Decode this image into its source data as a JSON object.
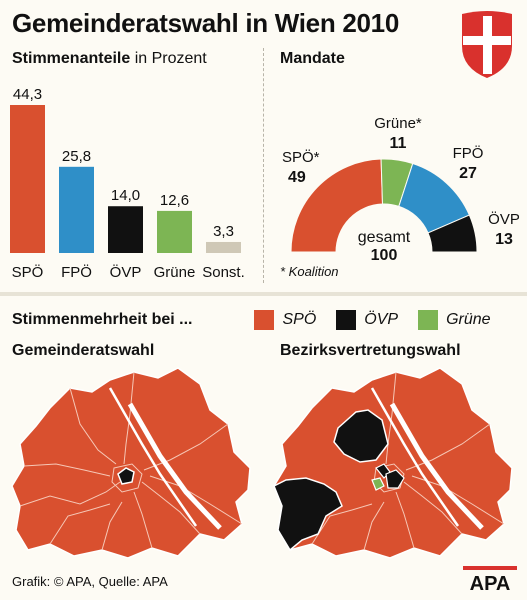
{
  "title": "Gemeinderatswahl in Wien 2010",
  "colors": {
    "spo": "#d9502f",
    "fpo": "#2f8fc8",
    "ovp": "#111111",
    "grune": "#7db554",
    "sonst": "#cfc8b6"
  },
  "left_panel": {
    "heading_bold": "Stimmenanteile",
    "heading_rest": " in Prozent"
  },
  "right_panel": {
    "heading": "Mandate",
    "total_label": "gesamt",
    "total_value": "100",
    "footnote": "* Koalition"
  },
  "chart_data": [
    {
      "type": "bar",
      "title": "Stimmenanteile in Prozent",
      "categories": [
        "SPÖ",
        "FPÖ",
        "ÖVP",
        "Grüne",
        "Sonst."
      ],
      "values": [
        44.3,
        25.8,
        14.0,
        12.6,
        3.3
      ],
      "value_labels": [
        "44,3",
        "25,8",
        "14,0",
        "12,6",
        "3,3"
      ],
      "colors": [
        "#d9502f",
        "#2f8fc8",
        "#111111",
        "#7db554",
        "#cfc8b6"
      ],
      "ylim": [
        0,
        44.3
      ]
    },
    {
      "type": "pie",
      "title": "Mandate",
      "categories": [
        "SPÖ*",
        "Grüne*",
        "FPÖ",
        "ÖVP"
      ],
      "values": [
        49,
        11,
        27,
        13
      ],
      "colors": [
        "#d9502f",
        "#7db554",
        "#2f8fc8",
        "#111111"
      ],
      "total": 100
    }
  ],
  "legend": {
    "title": "Stimmenmehrheit bei ...",
    "items": [
      {
        "label": "SPÖ",
        "color": "#d9502f"
      },
      {
        "label": "ÖVP",
        "color": "#111111"
      },
      {
        "label": "Grüne",
        "color": "#7db554"
      }
    ]
  },
  "maps": {
    "left_title": "Gemeinderatswahl",
    "right_title": "Bezirksvertretungswahl"
  },
  "footer": "Grafik: © APA, Quelle: APA",
  "logo_text": "APA"
}
